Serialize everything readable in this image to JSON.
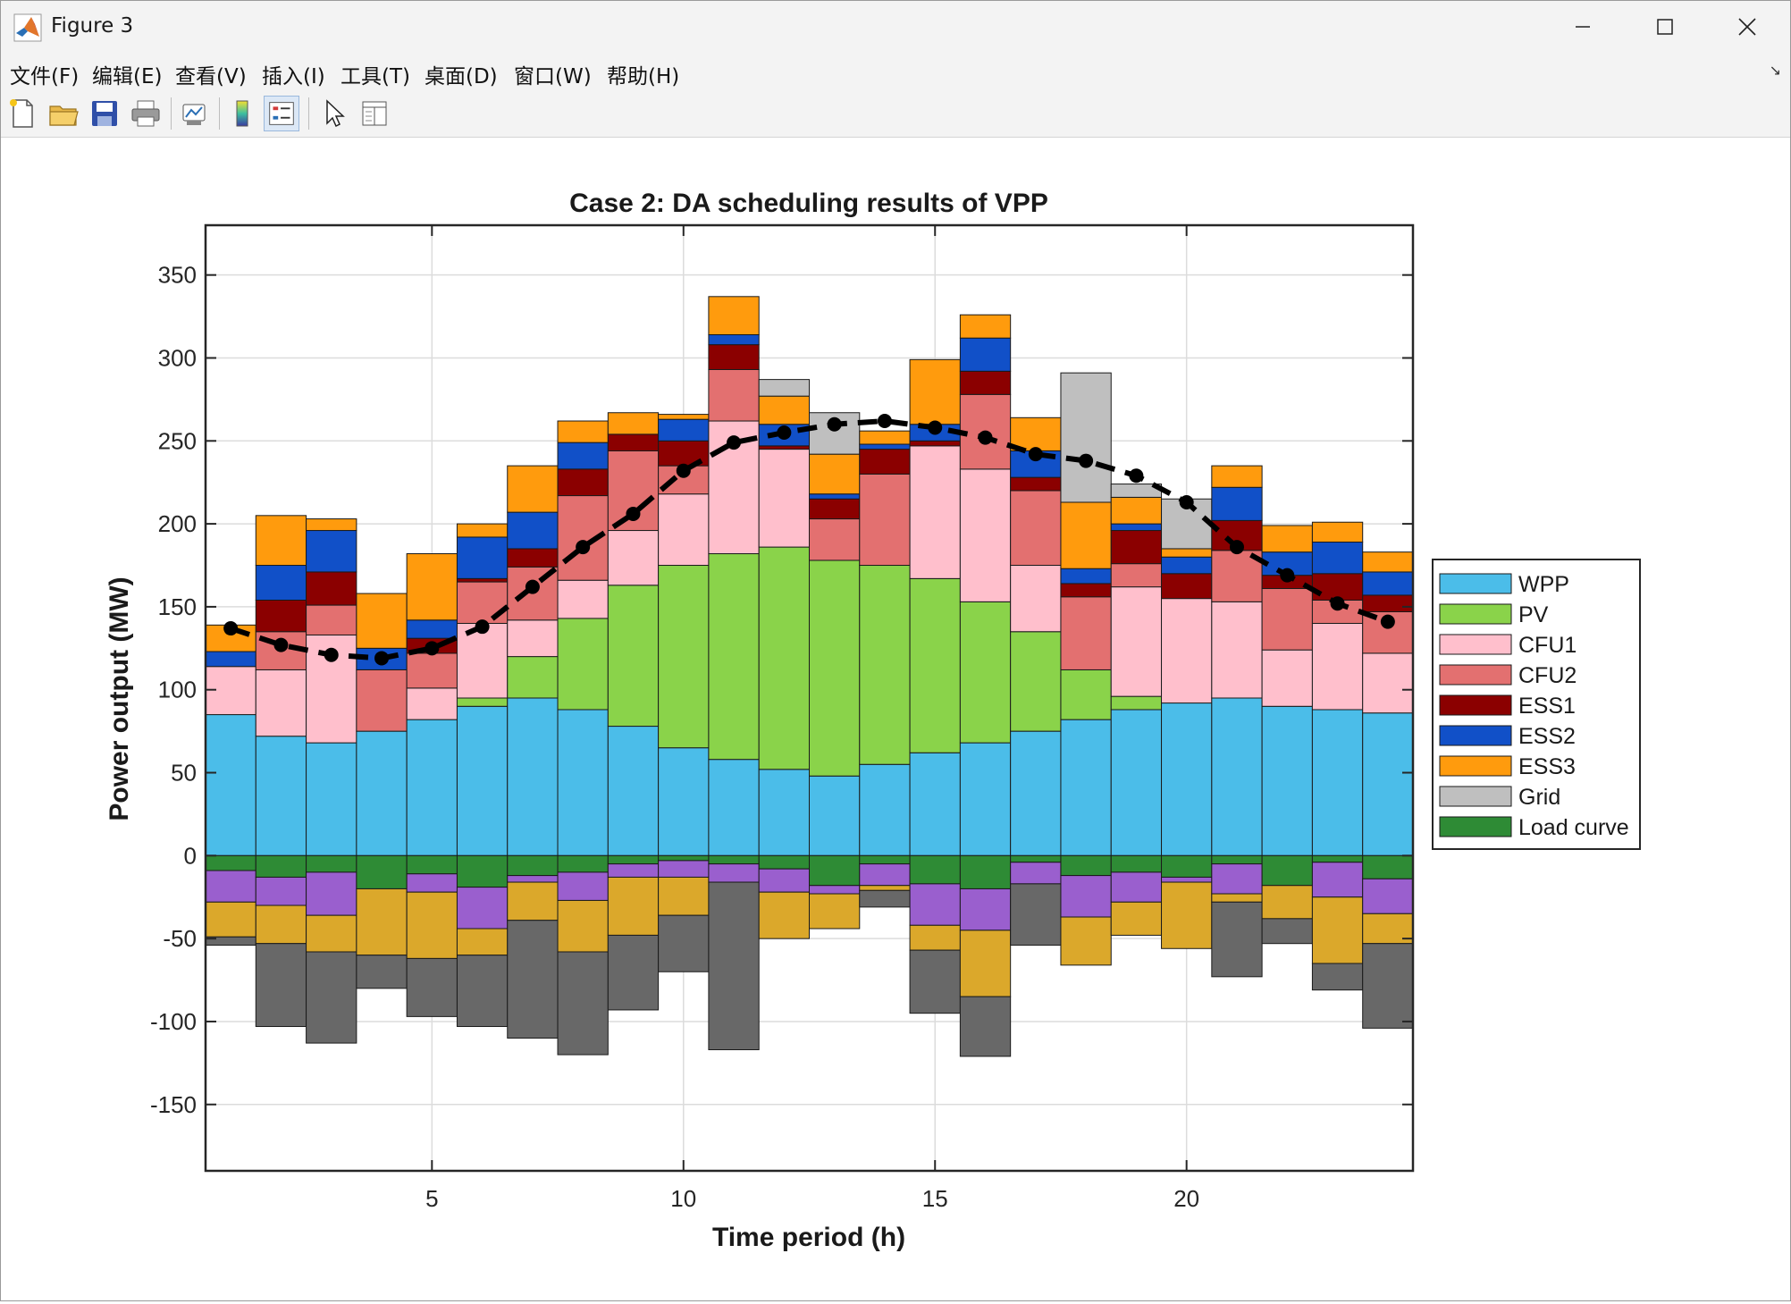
{
  "window": {
    "title": "Figure 3"
  },
  "menu": [
    "文件(F)",
    "编辑(E)",
    "查看(V)",
    "插入(I)",
    "工具(T)",
    "桌面(D)",
    "窗口(W)",
    "帮助(H)"
  ],
  "toolbar": [
    "new-figure",
    "open-file",
    "save-figure",
    "print-figure",
    "link-plot",
    "colorbar",
    "legend",
    "edit-plot",
    "property-inspector"
  ],
  "chart_data": {
    "type": "bar",
    "stacked": true,
    "title": "Case 2: DA scheduling results of VPP",
    "xlabel": "Time period (h)",
    "ylabel": "Power output (MW)",
    "xlim": [
      0.5,
      24.5
    ],
    "ylim": [
      -190,
      380
    ],
    "xticks": [
      5,
      10,
      15,
      20
    ],
    "yticks": [
      -150,
      -100,
      -50,
      0,
      50,
      100,
      150,
      200,
      250,
      300,
      350
    ],
    "grid": true,
    "legend_position": "right",
    "x": [
      1,
      2,
      3,
      4,
      5,
      6,
      7,
      8,
      9,
      10,
      11,
      12,
      13,
      14,
      15,
      16,
      17,
      18,
      19,
      20,
      21,
      22,
      23,
      24
    ],
    "series": [
      {
        "name": "WPP",
        "color": "#4bbde9",
        "values": [
          85,
          72,
          68,
          75,
          82,
          90,
          95,
          88,
          78,
          65,
          58,
          52,
          48,
          55,
          62,
          68,
          75,
          82,
          88,
          92,
          95,
          90,
          88,
          86
        ]
      },
      {
        "name": "PV",
        "color": "#8ad34a",
        "values": [
          0,
          0,
          0,
          0,
          0,
          5,
          25,
          55,
          85,
          110,
          124,
          134,
          130,
          120,
          105,
          85,
          60,
          30,
          8,
          0,
          0,
          0,
          0,
          0
        ]
      },
      {
        "name": "CFU1",
        "color": "#ffbfcc",
        "values": [
          29,
          40,
          65,
          0,
          19,
          45,
          22,
          23,
          33,
          43,
          80,
          59,
          0,
          0,
          80,
          80,
          40,
          0,
          66,
          63,
          58,
          34,
          52,
          36
        ]
      },
      {
        "name": "CFU2",
        "color": "#e37070",
        "values": [
          0,
          23,
          18,
          37,
          21,
          25,
          32,
          51,
          48,
          17,
          31,
          0,
          25,
          55,
          0,
          45,
          45,
          44,
          14,
          0,
          31,
          37,
          14,
          25
        ]
      },
      {
        "name": "ESS1",
        "color": "#8b0000",
        "values": [
          0,
          19,
          20,
          0,
          9,
          2,
          11,
          16,
          10,
          15,
          15,
          2,
          12,
          15,
          3,
          14,
          8,
          8,
          20,
          15,
          18,
          8,
          16,
          10
        ]
      },
      {
        "name": "ESS2",
        "color": "#1150c8",
        "values": [
          9,
          21,
          25,
          13,
          11,
          25,
          22,
          16,
          0,
          13,
          6,
          13,
          3,
          3,
          10,
          20,
          16,
          9,
          4,
          10,
          20,
          14,
          19,
          14
        ]
      },
      {
        "name": "ESS3",
        "color": "#ff9b0d",
        "values": [
          16,
          30,
          7,
          33,
          40,
          8,
          28,
          13,
          13,
          3,
          23,
          17,
          24,
          8,
          39,
          14,
          20,
          40,
          16,
          5,
          13,
          16,
          12,
          12
        ]
      },
      {
        "name": "Grid",
        "color": "#bfbfbf",
        "values": [
          0,
          0,
          0,
          0,
          0,
          0,
          0,
          0,
          0,
          0,
          0,
          10,
          25,
          0,
          0,
          0,
          0,
          78,
          8,
          30,
          0,
          0,
          0,
          0
        ]
      },
      {
        "name": "Load curve",
        "color": "#2e8b35",
        "values": [
          -9,
          -13,
          -10,
          -20,
          -11,
          -19,
          -12,
          -10,
          -5,
          -3,
          -5,
          -8,
          -18,
          -5,
          -17,
          -20,
          -4,
          -12,
          -10,
          -13,
          -5,
          -18,
          -4,
          -14
        ]
      },
      {
        "name": "",
        "color": "#9a5fce",
        "values": [
          -19,
          -17,
          -26,
          0,
          -11,
          -25,
          -4,
          -17,
          -8,
          -10,
          -11,
          -14,
          -5,
          -13,
          -25,
          -25,
          -13,
          -25,
          -18,
          -3,
          -18,
          0,
          -21,
          -21
        ]
      },
      {
        "name": "",
        "color": "#dba82b",
        "values": [
          -21,
          -23,
          -22,
          -40,
          -40,
          -16,
          -23,
          -31,
          -35,
          -23,
          0,
          -28,
          -21,
          -3,
          -15,
          -40,
          0,
          -29,
          -20,
          -40,
          -5,
          -20,
          -40,
          -18
        ]
      },
      {
        "name": "",
        "color": "#686868",
        "values": [
          -5,
          -50,
          -55,
          -20,
          -35,
          -43,
          -71,
          -62,
          -45,
          -34,
          -101,
          0,
          0,
          -10,
          -38,
          -36,
          -37,
          0,
          0,
          0,
          -45,
          -15,
          -16,
          -51
        ]
      }
    ],
    "line": {
      "values": [
        137,
        127,
        121,
        119,
        125,
        138,
        162,
        186,
        206,
        232,
        249,
        255,
        260,
        262,
        258,
        252,
        242,
        238,
        229,
        213,
        186,
        169,
        152,
        141
      ]
    }
  }
}
